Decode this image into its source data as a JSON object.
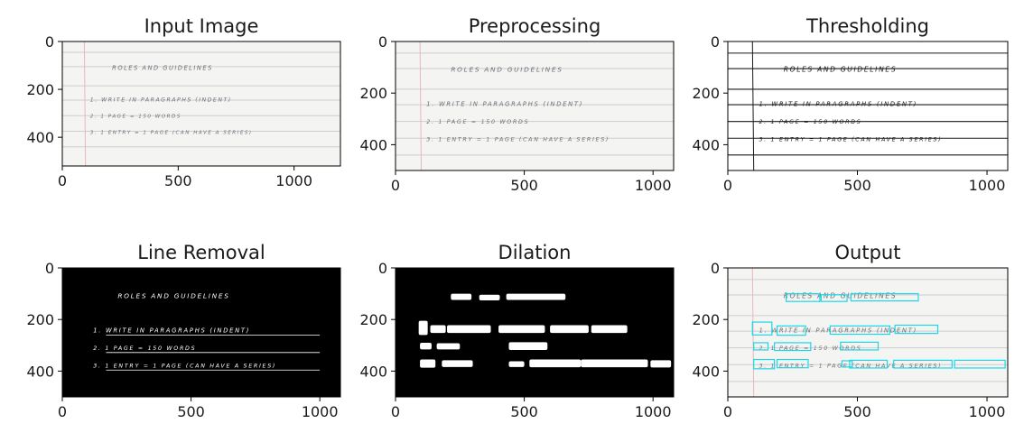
{
  "chart_data": [
    {
      "type": "image",
      "title": "Input Image",
      "style": "paper",
      "xlim": [
        0,
        1200
      ],
      "ylim": [
        520,
        0
      ],
      "xticks": [
        0,
        500,
        1000
      ],
      "yticks": [
        0,
        200,
        400
      ],
      "xtick_labels": [
        "0",
        "500",
        "1000"
      ],
      "ytick_labels": [
        "0",
        "200",
        "400"
      ]
    },
    {
      "type": "image",
      "title": "Preprocessing",
      "style": "paper",
      "xlim": [
        0,
        1080
      ],
      "ylim": [
        500,
        0
      ],
      "xticks": [
        0,
        500,
        1000
      ],
      "yticks": [
        0,
        200,
        400
      ],
      "xtick_labels": [
        "0",
        "500",
        "1000"
      ],
      "ytick_labels": [
        "0",
        "200",
        "400"
      ]
    },
    {
      "type": "image",
      "title": "Thresholding",
      "style": "threshold",
      "xlim": [
        0,
        1080
      ],
      "ylim": [
        500,
        0
      ],
      "xticks": [
        0,
        500,
        1000
      ],
      "yticks": [
        0,
        200,
        400
      ],
      "xtick_labels": [
        "0",
        "500",
        "1000"
      ],
      "ytick_labels": [
        "0",
        "200",
        "400"
      ]
    },
    {
      "type": "image",
      "title": "Line Removal",
      "style": "inverted",
      "xlim": [
        0,
        1080
      ],
      "ylim": [
        500,
        0
      ],
      "xticks": [
        0,
        500,
        1000
      ],
      "yticks": [
        0,
        200,
        400
      ],
      "xtick_labels": [
        "0",
        "500",
        "1000"
      ],
      "ytick_labels": [
        "0",
        "200",
        "400"
      ]
    },
    {
      "type": "image",
      "title": "Dilation",
      "style": "dilation",
      "xlim": [
        0,
        1080
      ],
      "ylim": [
        500,
        0
      ],
      "xticks": [
        0,
        500,
        1000
      ],
      "yticks": [
        0,
        200,
        400
      ],
      "xtick_labels": [
        "0",
        "500",
        "1000"
      ],
      "ytick_labels": [
        "0",
        "200",
        "400"
      ]
    },
    {
      "type": "image",
      "title": "Output",
      "style": "output",
      "xlim": [
        0,
        1080
      ],
      "ylim": [
        500,
        0
      ],
      "xticks": [
        0,
        500,
        1000
      ],
      "yticks": [
        0,
        200,
        400
      ],
      "xtick_labels": [
        "0",
        "500",
        "1000"
      ],
      "ytick_labels": [
        "0",
        "200",
        "400"
      ]
    }
  ],
  "document_text": [
    "ROLES AND GUIDELINES",
    "1. WRITE IN PARAGRAPHS (INDENT)",
    "2. 1 PAGE = 150 WORDS",
    "3. 1 ENTRY = 1 PAGE (CAN HAVE A SERIES)"
  ],
  "colors": {
    "paper": "#f4f4f2",
    "ruled_line": "#cdcdcf",
    "margin_line": "#e6b8bd",
    "ink": "#6e6e78",
    "threshold_ink": "#1a1a1a",
    "mask_bg": "#000000",
    "mask_fg": "#ffffff",
    "box": "#19d8e8"
  }
}
